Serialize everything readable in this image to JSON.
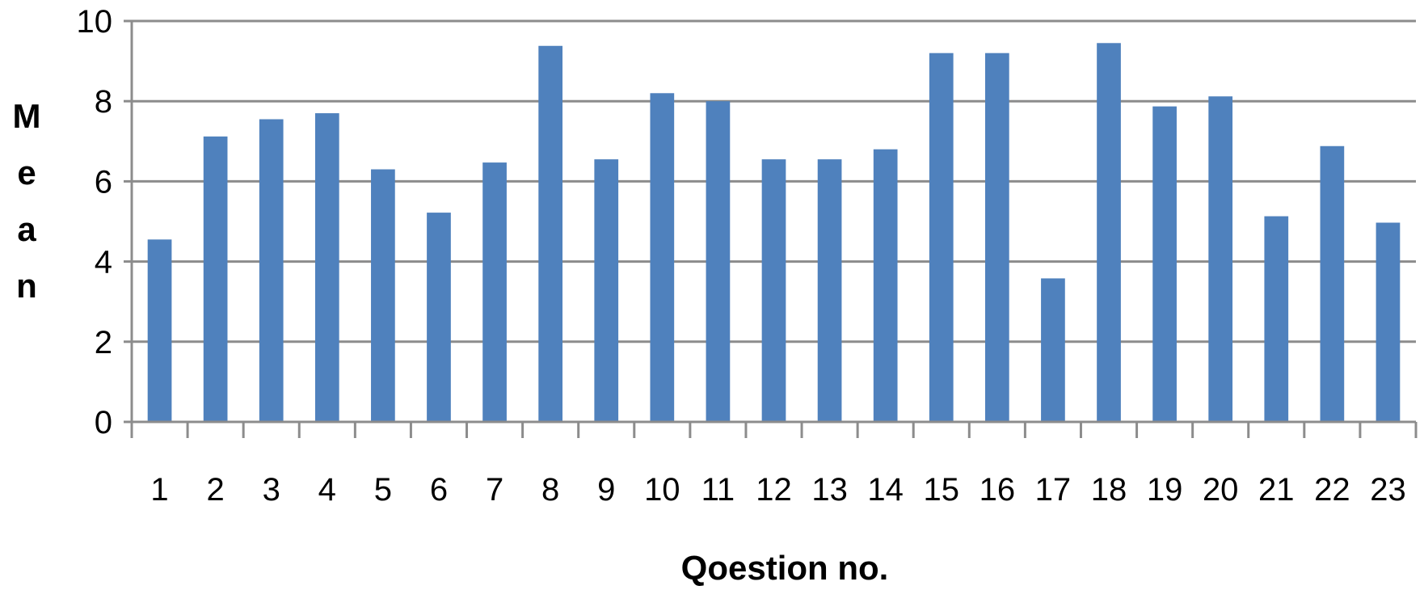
{
  "chart_data": {
    "type": "bar",
    "title": "",
    "xlabel": "Qoestion no.",
    "ylabel": "Mean",
    "categories": [
      "1",
      "2",
      "3",
      "4",
      "5",
      "6",
      "7",
      "8",
      "9",
      "10",
      "11",
      "12",
      "13",
      "14",
      "15",
      "16",
      "17",
      "18",
      "19",
      "20",
      "21",
      "22",
      "23"
    ],
    "values": [
      4.55,
      7.12,
      7.55,
      7.7,
      6.3,
      5.22,
      6.47,
      9.38,
      6.55,
      8.2,
      8.0,
      6.55,
      6.55,
      6.8,
      9.2,
      9.2,
      3.58,
      9.45,
      7.87,
      8.12,
      5.13,
      6.88,
      4.97
    ],
    "ylim": [
      0,
      10
    ],
    "yticks": [
      "0",
      "2",
      "4",
      "6",
      "8",
      "10"
    ],
    "grid": true,
    "legend": "none",
    "colors": {
      "bar": "#4f81bd",
      "grid": "#8c8c8c",
      "axis": "#8c8c8c"
    }
  }
}
